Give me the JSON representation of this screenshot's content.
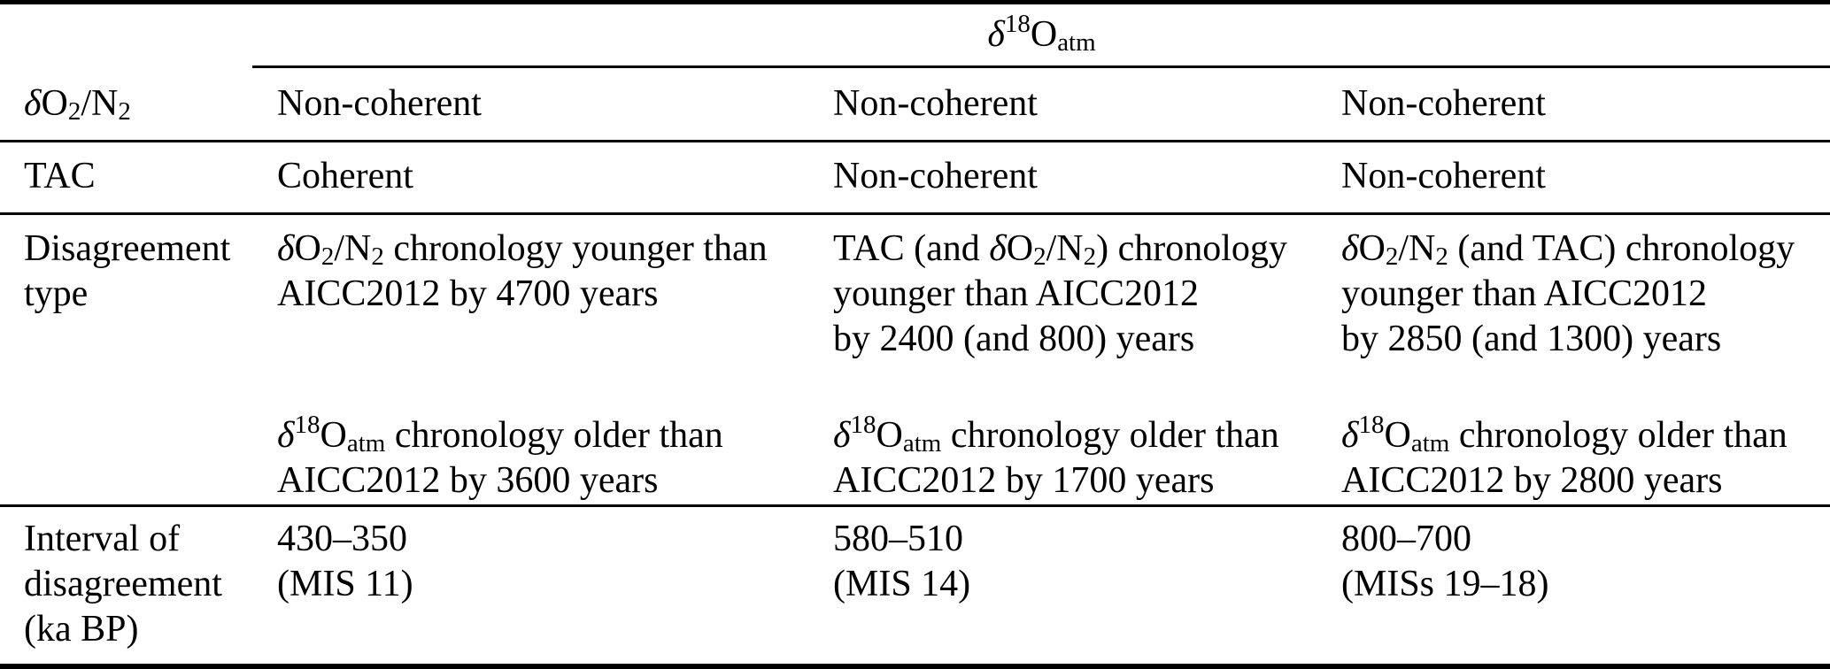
{
  "colors": {
    "background": "#ffffff",
    "text": "#000000",
    "rule": "#000000"
  },
  "table": {
    "column_group_header": "*δ*^{18}O_{atm}",
    "rows": [
      {
        "label": "*δ*O_{2}/N_{2}",
        "cells": [
          "Non-coherent",
          "Non-coherent",
          "Non-coherent"
        ]
      },
      {
        "label": "TAC",
        "cells": [
          "Coherent",
          "Non-coherent",
          "Non-coherent"
        ]
      },
      {
        "label": "Disagreement\ntype",
        "cells": [
          {
            "p1": "*δ*O_{2}/N_{2} chronology younger than\nAICC2012 by 4700 years",
            "p2": "*δ*^{18}O_{atm} chronology older than\nAICC2012 by 3600 years"
          },
          {
            "p1": "TAC (and *δ*O_{2}/N_{2}) chronology\nyounger than AICC2012\nby 2400 (and 800) years",
            "p2": "*δ*^{18}O_{atm} chronology older than\nAICC2012 by 1700 years"
          },
          {
            "p1": "*δ*O_{2}/N_{2} (and TAC) chronology\nyounger than AICC2012\nby 2850 (and 1300) years",
            "p2": "*δ*^{18}O_{atm} chronology older than\nAICC2012 by 2800 years"
          }
        ]
      },
      {
        "label": "Interval of\ndisagreement\n(ka BP)",
        "cells": [
          "430–350\n(MIS 11)",
          "580–510\n(MIS 14)",
          "800–700\n(MISs 19–18)"
        ]
      }
    ]
  }
}
